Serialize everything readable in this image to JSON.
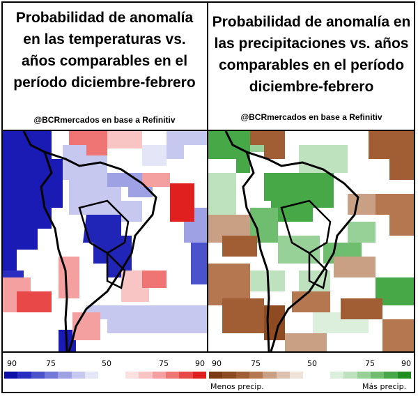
{
  "left_panel": {
    "title_lines": [
      "Probabilidad de anomalía",
      "en las temperaturas vs.",
      "años comparables  en el",
      "período diciembre-febrero"
    ],
    "credit": "@BCRmercados en base a Refinitiv",
    "scale": {
      "labels": [
        "90",
        "75",
        "50",
        "75",
        "90"
      ]
    },
    "palette": [
      "#0b0fa8",
      "#2a2ec0",
      "#4c51cc",
      "#7478d8",
      "#9ea1e4",
      "#c6c8ef",
      "#e4e5f7",
      "#ffffff",
      "#ffffff",
      "#fbe0e0",
      "#f8c4c4",
      "#f4a0a0",
      "#ef7474",
      "#e84848",
      "#e01f1f"
    ]
  },
  "right_panel": {
    "title_lines": [
      "Probabilidad de anomalía en",
      "las precipitaciones vs. años",
      "comparables en el período",
      "diciembre-febrero"
    ],
    "credit": "@BCRmercados en base a Refinitiv",
    "scale": {
      "labels": [
        "90",
        "75",
        "50",
        "75",
        "90"
      ]
    },
    "legend_left": "Menos precip.",
    "legend_right": "Más precip.",
    "palette": [
      "#7b3a12",
      "#8e4a20",
      "#a15e34",
      "#b5774f",
      "#caa084",
      "#dcc2ae",
      "#efe3d9",
      "#ffffff",
      "#ffffff",
      "#dcefdc",
      "#bde2bd",
      "#97d197",
      "#6fbe6f",
      "#46a846",
      "#1f8f1f"
    ]
  }
}
